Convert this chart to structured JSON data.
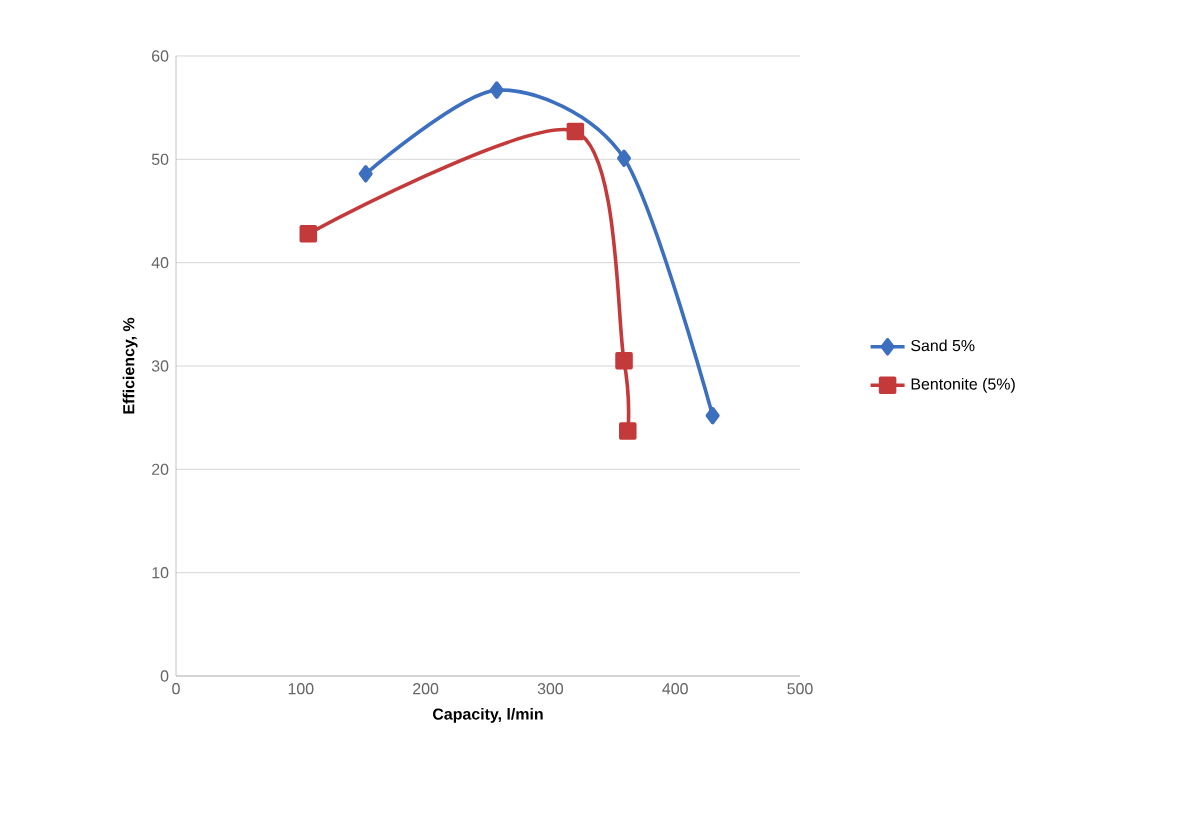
{
  "chart_data": {
    "type": "line",
    "xlabel": "Capacity, l/min",
    "ylabel": "Efficiency, %",
    "series": [
      {
        "name": "Sand 5%",
        "color": "#3c6fbf",
        "marker": "diamond",
        "x": [
          152,
          257,
          359,
          430
        ],
        "values": [
          48.6,
          56.7,
          50.1,
          25.2
        ]
      },
      {
        "name": "Bentonite (5%)",
        "color": "#c43a3a",
        "marker": "square",
        "x": [
          106,
          320,
          359,
          362
        ],
        "values": [
          42.8,
          52.7,
          30.5,
          23.7
        ]
      }
    ],
    "xlim": [
      0,
      500
    ],
    "xticks": [
      0,
      100,
      200,
      300,
      400,
      500
    ],
    "ylim": [
      0,
      60
    ],
    "yticks": [
      0,
      10,
      20,
      30,
      40,
      50,
      60
    ],
    "grid": "y",
    "legend": "right"
  }
}
